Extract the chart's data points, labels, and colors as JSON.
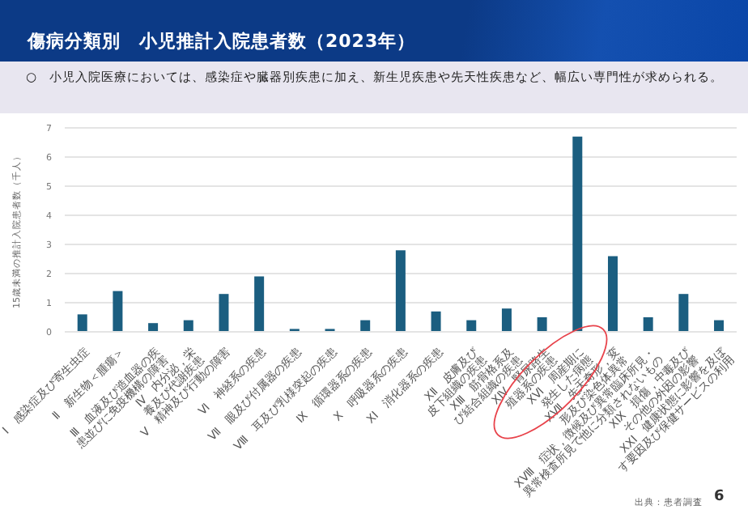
{
  "chart_data": {
    "type": "bar",
    "title": "傷病分類別　小児推計入院患者数（2023年）",
    "subtitle": "○　小児入院医療においては、感染症や臓器別疾患に加え、新生児疾患や先天性疾患など、幅広い専門性が求められる。",
    "ylabel": "15歳未満の推計入院患者数（千人）",
    "annotations": [
      "出典：患者調査",
      "6"
    ],
    "categories": [
      "Ⅰ　感染症及び寄生虫症",
      "Ⅱ　新生物＜腫瘍＞",
      "Ⅲ　血液及び造血器の疾患並びに免疫機構の障害",
      "Ⅳ　内分泌，栄養及び代謝疾患",
      "Ⅴ　精神及び行動の障害",
      "Ⅵ　神経系の疾患",
      "Ⅶ　眼及び付属器の疾患",
      "Ⅷ　耳及び乳様突起の疾患",
      "Ⅸ　循環器系の疾患",
      "Ⅹ　呼吸器系の疾患",
      "ⅩⅠ　消化器系の疾患",
      "ⅩⅡ　皮膚及び皮下組織の疾患",
      "ⅩⅢ　筋骨格系及び結合組織の疾患",
      "ⅩⅣ　腎尿路生殖器系の疾患",
      "ⅩⅥ　周産期に発生した病態",
      "ⅩⅦ　先天奇形，変形及び染色体異常",
      "ⅩⅧ　症状，徴候及び異常臨床所見・異常検査所見で他に分類されないもの",
      "ⅩⅨ　損傷，中毒及びその他の外因の影響",
      "ⅩⅩⅠ　健康状態に影響を及ぼす要因及び保健サービスの利用"
    ],
    "values": [
      0.6,
      1.4,
      0.3,
      0.4,
      1.3,
      1.9,
      0.1,
      0.1,
      0.4,
      2.8,
      0.7,
      0.4,
      0.8,
      0.5,
      6.7,
      2.6,
      0.5,
      1.3,
      0.4
    ],
    "color": "#1b5e80",
    "ylim": [
      0,
      7
    ],
    "yticks": [
      0,
      1,
      2,
      3,
      4,
      5,
      6,
      7
    ],
    "grid": "y"
  }
}
